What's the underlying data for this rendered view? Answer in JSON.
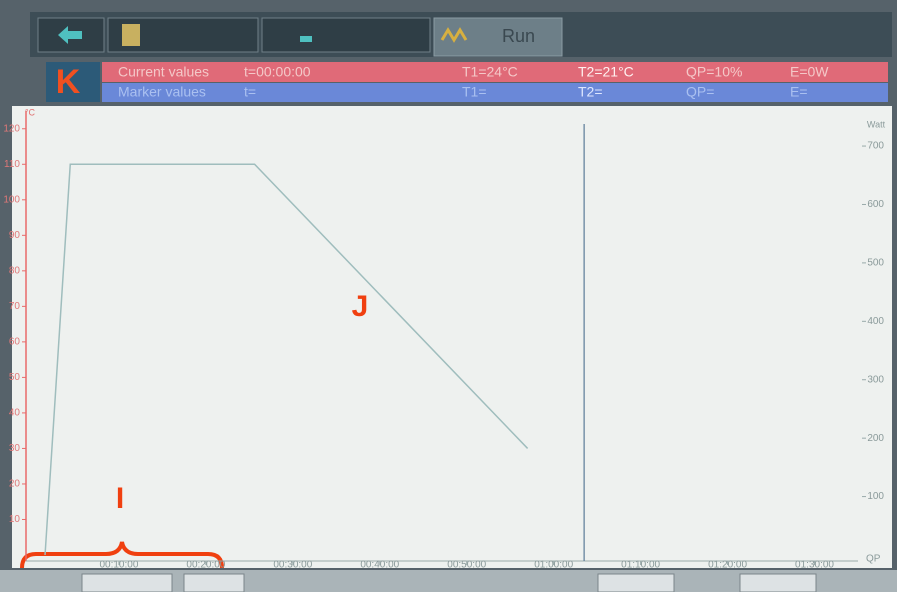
{
  "toolbar": {
    "tabs": [
      "Run"
    ]
  },
  "logo": "K",
  "status": {
    "current": {
      "label": "Current values",
      "t": "t=00:00:00",
      "t1": "T1=24°C",
      "t2": "T2=21°C",
      "qp": "QP=10%",
      "e": "E=0W"
    },
    "marker": {
      "label": "Marker values",
      "t": "t=",
      "t1": "T1=",
      "t2": "T2=",
      "qp": "QP=",
      "e": "E="
    }
  },
  "chart_data": {
    "type": "line",
    "y_unit": "°C",
    "y2_unit": "Watt",
    "x_label": "QP",
    "xlim": [
      0,
      95
    ],
    "ylim": [
      0,
      125
    ],
    "y2lim": [
      0,
      760
    ],
    "xticks": [
      {
        "value": 10,
        "label": "00:10:00"
      },
      {
        "value": 20,
        "label": "00:20:00"
      },
      {
        "value": 30,
        "label": "00:30:00"
      },
      {
        "value": 40,
        "label": "00:40:00"
      },
      {
        "value": 50,
        "label": "00:50:00"
      },
      {
        "value": 60,
        "label": "01:00:00"
      },
      {
        "value": 70,
        "label": "01:10:00"
      },
      {
        "value": 80,
        "label": "01:20:00"
      },
      {
        "value": 90,
        "label": "01:30:00"
      }
    ],
    "yticks": [
      10,
      20,
      30,
      40,
      50,
      60,
      70,
      80,
      90,
      100,
      110,
      120
    ],
    "y2ticks": [
      100,
      200,
      300,
      400,
      500,
      600,
      700
    ],
    "x": [
      1.5,
      4.4,
      25.6,
      57
    ],
    "series": [
      {
        "color": "#9fbdbd",
        "values": [
          0,
          110,
          110,
          30
        ]
      }
    ],
    "marker_x": 63.5,
    "annotations": [
      "I",
      "J"
    ]
  }
}
